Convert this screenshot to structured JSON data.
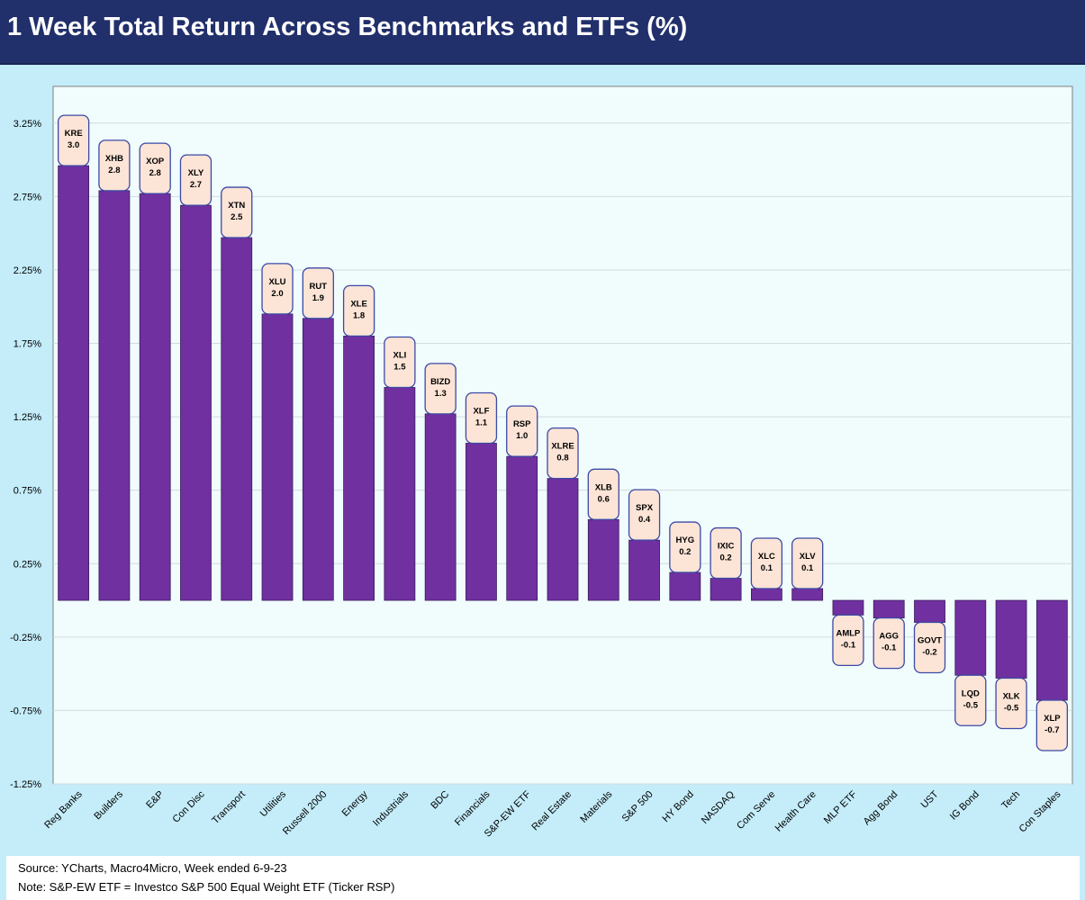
{
  "title": "1 Week Total Return Across Benchmarks and ETFs (%)",
  "footer": {
    "source": "Source: YCharts, Macro4Micro, Week ended 6-9-23",
    "note": "Note: S&P-EW ETF = Investco S&P 500 Equal Weight ETF (Ticker RSP)"
  },
  "colors": {
    "header": "#212f6b",
    "background": "#c4ecf9",
    "plot_area": "#f1fcfd",
    "bar": "#7030a0",
    "label_box": "#fce4d6",
    "label_border": "#3a4aa6"
  },
  "chart_data": {
    "type": "bar",
    "title": "1 Week Total Return Across Benchmarks and ETFs (%)",
    "xlabel": "",
    "ylabel": "",
    "ylim": [
      -1.25,
      3.5
    ],
    "grid": true,
    "legend": "none",
    "y_ticks": [
      "3.25%",
      "2.75%",
      "2.25%",
      "1.75%",
      "1.25%",
      "0.75%",
      "0.25%",
      "-0.25%",
      "-0.75%",
      "-1.25%"
    ],
    "y_tick_values": [
      3.25,
      2.75,
      2.25,
      1.75,
      1.25,
      0.75,
      0.25,
      -0.25,
      -0.75,
      -1.25
    ],
    "categories": [
      "Reg Banks",
      "Builders",
      "E&P",
      "Con Disc",
      "Transport",
      "Utilities",
      "Russell 2000",
      "Energy",
      "Industrials",
      "BDC",
      "Financials",
      "S&P-EW ETF",
      "Real Estate",
      "Materials",
      "S&P 500",
      "HY Bond",
      "NASDAQ",
      "Com Serve",
      "Health Care",
      "MLP ETF",
      "Agg Bond",
      "UST",
      "IG Bond",
      "Tech",
      "Con Staples"
    ],
    "values": [
      2.96,
      2.79,
      2.77,
      2.69,
      2.47,
      1.95,
      1.92,
      1.8,
      1.45,
      1.27,
      1.07,
      0.98,
      0.83,
      0.55,
      0.41,
      0.19,
      0.15,
      0.08,
      0.08,
      -0.1,
      -0.12,
      -0.15,
      -0.51,
      -0.53,
      -0.68
    ],
    "tickers": [
      "KRE",
      "XHB",
      "XOP",
      "XLY",
      "XTN",
      "XLU",
      "RUT",
      "XLE",
      "XLI",
      "BIZD",
      "XLF",
      "RSP",
      "XLRE",
      "XLB",
      "SPX",
      "HYG",
      "IXIC",
      "XLC",
      "XLV",
      "AMLP",
      "AGG",
      "GOVT",
      "LQD",
      "XLK",
      "XLP"
    ],
    "data_labels": [
      "3.0",
      "2.8",
      "2.8",
      "2.7",
      "2.5",
      "2.0",
      "1.9",
      "1.8",
      "1.5",
      "1.3",
      "1.1",
      "1.0",
      "0.8",
      "0.6",
      "0.4",
      "0.2",
      "0.2",
      "0.1",
      "0.1",
      "-0.1",
      "-0.1",
      "-0.2",
      "-0.5",
      "-0.5",
      "-0.7"
    ]
  }
}
